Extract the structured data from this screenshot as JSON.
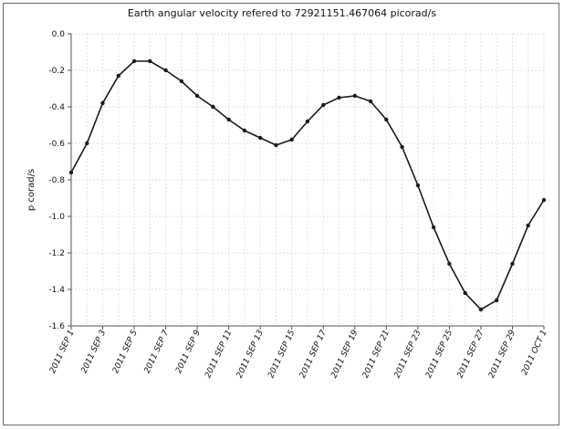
{
  "chart_data": {
    "type": "line",
    "title": "Earth angular velocity refered to 72921151.467064 picorad/s",
    "xlabel": "",
    "ylabel": "p corad/s",
    "ylim": [
      -1.6,
      0.0
    ],
    "yticks": [
      {
        "value": 0.0,
        "label": "0.0"
      },
      {
        "value": -0.2,
        "label": "-0.2"
      },
      {
        "value": -0.4,
        "label": "-0.4"
      },
      {
        "value": -0.6,
        "label": "-0.6"
      },
      {
        "value": -0.8,
        "label": "-0.8"
      },
      {
        "value": -1.0,
        "label": "-1.0"
      },
      {
        "value": -1.2,
        "label": "-1.2"
      },
      {
        "value": -1.4,
        "label": "-1.4"
      },
      {
        "value": -1.6,
        "label": "-1.6"
      }
    ],
    "xlim": [
      "2011-09-01",
      "2011-10-01"
    ],
    "xticks": [
      {
        "date": "2011-09-01",
        "label": "2011 SEP 1"
      },
      {
        "date": "2011-09-03",
        "label": "2011 SEP 3"
      },
      {
        "date": "2011-09-05",
        "label": "2011 SEP 5"
      },
      {
        "date": "2011-09-07",
        "label": "2011 SEP 7"
      },
      {
        "date": "2011-09-09",
        "label": "2011 SEP 9"
      },
      {
        "date": "2011-09-11",
        "label": "2011 SEP 11"
      },
      {
        "date": "2011-09-13",
        "label": "2011 SEP 13"
      },
      {
        "date": "2011-09-15",
        "label": "2011 SEP 15"
      },
      {
        "date": "2011-09-17",
        "label": "2011 SEP 17"
      },
      {
        "date": "2011-09-19",
        "label": "2011 SEP 19"
      },
      {
        "date": "2011-09-21",
        "label": "2011 SEP 21"
      },
      {
        "date": "2011-09-23",
        "label": "2011 SEP 23"
      },
      {
        "date": "2011-09-25",
        "label": "2011 SEP 25"
      },
      {
        "date": "2011-09-27",
        "label": "2011 SEP 27"
      },
      {
        "date": "2011-09-29",
        "label": "2011 SEP 29"
      },
      {
        "date": "2011-10-01",
        "label": "2011 OCT 1"
      }
    ],
    "grid": true,
    "series": [
      {
        "color": "#1a1a1a",
        "points": [
          {
            "x": "2011-09-01",
            "y": -0.76
          },
          {
            "x": "2011-09-02",
            "y": -0.6
          },
          {
            "x": "2011-09-03",
            "y": -0.38
          },
          {
            "x": "2011-09-04",
            "y": -0.23
          },
          {
            "x": "2011-09-05",
            "y": -0.15
          },
          {
            "x": "2011-09-06",
            "y": -0.15
          },
          {
            "x": "2011-09-07",
            "y": -0.2
          },
          {
            "x": "2011-09-08",
            "y": -0.26
          },
          {
            "x": "2011-09-09",
            "y": -0.34
          },
          {
            "x": "2011-09-10",
            "y": -0.4
          },
          {
            "x": "2011-09-11",
            "y": -0.47
          },
          {
            "x": "2011-09-12",
            "y": -0.53
          },
          {
            "x": "2011-09-13",
            "y": -0.57
          },
          {
            "x": "2011-09-14",
            "y": -0.61
          },
          {
            "x": "2011-09-15",
            "y": -0.58
          },
          {
            "x": "2011-09-16",
            "y": -0.48
          },
          {
            "x": "2011-09-17",
            "y": -0.39
          },
          {
            "x": "2011-09-18",
            "y": -0.35
          },
          {
            "x": "2011-09-19",
            "y": -0.34
          },
          {
            "x": "2011-09-20",
            "y": -0.37
          },
          {
            "x": "2011-09-21",
            "y": -0.47
          },
          {
            "x": "2011-09-22",
            "y": -0.62
          },
          {
            "x": "2011-09-23",
            "y": -0.83
          },
          {
            "x": "2011-09-24",
            "y": -1.06
          },
          {
            "x": "2011-09-25",
            "y": -1.26
          },
          {
            "x": "2011-09-26",
            "y": -1.42
          },
          {
            "x": "2011-09-27",
            "y": -1.51
          },
          {
            "x": "2011-09-28",
            "y": -1.46
          },
          {
            "x": "2011-09-29",
            "y": -1.26
          },
          {
            "x": "2011-09-30",
            "y": -1.05
          },
          {
            "x": "2011-10-01",
            "y": -0.91
          }
        ]
      }
    ]
  }
}
